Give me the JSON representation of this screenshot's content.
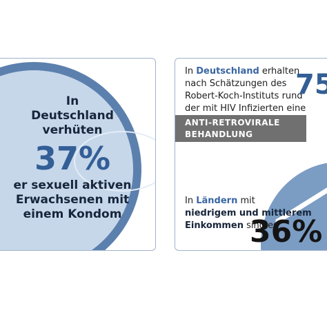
{
  "left_card": {
    "line1": "In",
    "line2": "Deutschland",
    "line3": "verhüten",
    "percent": "37%",
    "line4": "er sexuell aktiven",
    "line5": "Erwachsenen mit",
    "line6": "einem Kondom"
  },
  "right_card": {
    "intro_prefix": "In ",
    "intro_country": "Deutschland",
    "intro_suffix": " erhalten",
    "line2": "nach Schätzungen des",
    "line3": "Robert-Koch-Instituts rund",
    "line4": "der mit HIV Infizierten eine",
    "percent_top": "75",
    "banner_line1": "ANTI-RETROVIRALE",
    "banner_line2": "BEHANDLUNG",
    "lower_prefix": "In ",
    "lower_countries": "Ländern",
    "lower_suffix": " mit",
    "lower_line2": "niedrigem und mittlerem",
    "lower_line3_bold": "Einkommen",
    "lower_line3_rest": " sind es",
    "percent_bottom": "36%"
  },
  "colors": {
    "accent_blue": "#335e96",
    "light_blue": "#c6d7ea",
    "ring_blue": "#5c80ad",
    "pie_blue": "#7b9dc4",
    "banner_grey": "#707070"
  }
}
